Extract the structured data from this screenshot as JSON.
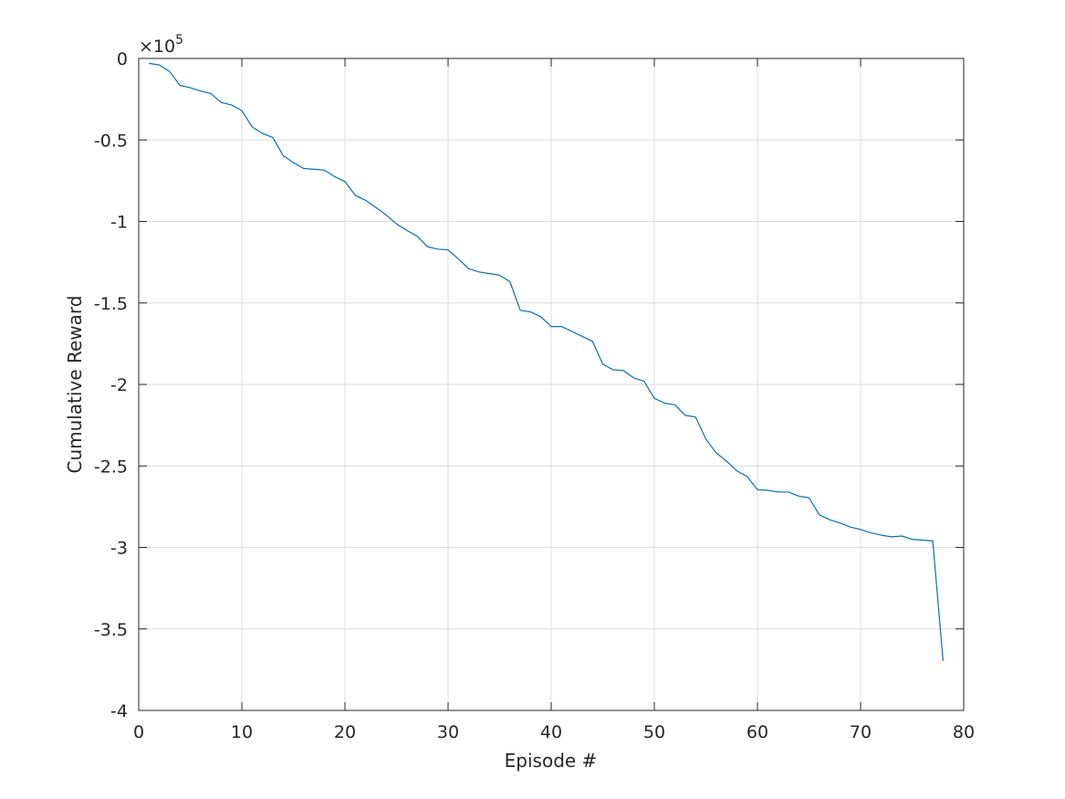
{
  "chart_data": {
    "type": "line",
    "title": "",
    "xlabel": "Episode #",
    "ylabel": "Cumulative Reward",
    "xlim": [
      0,
      80
    ],
    "ylim": [
      -400000,
      0
    ],
    "x_ticks": [
      0,
      10,
      20,
      30,
      40,
      50,
      60,
      70,
      80
    ],
    "x_tick_labels": [
      "0",
      "10",
      "20",
      "30",
      "40",
      "50",
      "60",
      "70",
      "80"
    ],
    "y_ticks": [
      0,
      -50000,
      -100000,
      -150000,
      -200000,
      -250000,
      -300000,
      -350000,
      -400000
    ],
    "y_tick_labels": [
      "0",
      "-0.5",
      "-1",
      "-1.5",
      "-2",
      "-2.5",
      "-3",
      "-3.5",
      "-4"
    ],
    "y_exponent_base": "×10",
    "y_exponent_power": "5",
    "grid": true,
    "line_color": "#0072BD",
    "series": [
      {
        "x": [
          1,
          2,
          3,
          4,
          5,
          6,
          7,
          8,
          9,
          10,
          11,
          12,
          13,
          14,
          15,
          16,
          17,
          18,
          19,
          20,
          21,
          22,
          23,
          24,
          25,
          26,
          27,
          28,
          29,
          30,
          31,
          32,
          33,
          34,
          35,
          36,
          37,
          38,
          39,
          40,
          41,
          42,
          43,
          44,
          45,
          46,
          47,
          48,
          49,
          50,
          51,
          52,
          53,
          54,
          55,
          56,
          57,
          58,
          59,
          60,
          61,
          62,
          63,
          64,
          65,
          66,
          67,
          68,
          69,
          70,
          71,
          72,
          73,
          74,
          75,
          76,
          77,
          78
        ],
        "values": [
          -3000,
          -4000,
          -8000,
          -16500,
          -18000,
          -20000,
          -21500,
          -27000,
          -28500,
          -32000,
          -42000,
          -46000,
          -48500,
          -59500,
          -64000,
          -67500,
          -68000,
          -68500,
          -72500,
          -75500,
          -84000,
          -87000,
          -91500,
          -96000,
          -101500,
          -105500,
          -109000,
          -115500,
          -117000,
          -117500,
          -123000,
          -129000,
          -131000,
          -132000,
          -133000,
          -137000,
          -154500,
          -155500,
          -158500,
          -164500,
          -164500,
          -167500,
          -170500,
          -173500,
          -187500,
          -191000,
          -191500,
          -196000,
          -198000,
          -208500,
          -211500,
          -212500,
          -219000,
          -220000,
          -233500,
          -242000,
          -247000,
          -253000,
          -256500,
          -264500,
          -265000,
          -266000,
          -266000,
          -268500,
          -269500,
          -280000,
          -283000,
          -285000,
          -287500,
          -289000,
          -291000,
          -292500,
          -293500,
          -293000,
          -295000,
          -295500,
          -296000,
          -369500
        ]
      }
    ]
  }
}
